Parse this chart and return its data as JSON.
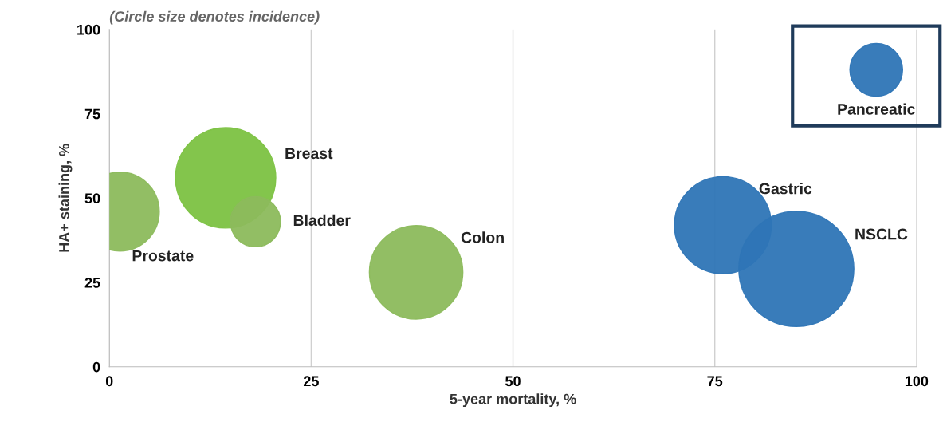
{
  "chart_data": {
    "type": "bubble",
    "xlabel": "5-year mortality, %",
    "ylabel": "HA+ staining, %",
    "x": [
      1.3,
      14.4,
      18.1,
      38,
      76,
      85.1,
      95
    ],
    "values": [
      46,
      56,
      43,
      28,
      42,
      29,
      88
    ],
    "sizes": [
      0.47,
      0.76,
      0.19,
      0.66,
      0.71,
      1,
      0.21
    ],
    "colors": [
      "#8cba5c",
      "#7cc242",
      "#8cba5c",
      "#8cba5c",
      "#2e75b6",
      "#2e75b6",
      "#2e75b6"
    ],
    "xlim": [
      0,
      100
    ],
    "xticks": [
      0,
      25,
      50,
      75,
      100
    ],
    "ylim": [
      0,
      100
    ],
    "yticks": [
      0,
      25,
      50,
      75,
      100
    ],
    "grid": "x",
    "legend": false,
    "annotations": [
      "(Circle size denotes incidence)",
      "Prostate",
      "Breast",
      "Bladder",
      "Colon",
      "Gastric",
      "NSCLC",
      "Pancreatic"
    ]
  }
}
